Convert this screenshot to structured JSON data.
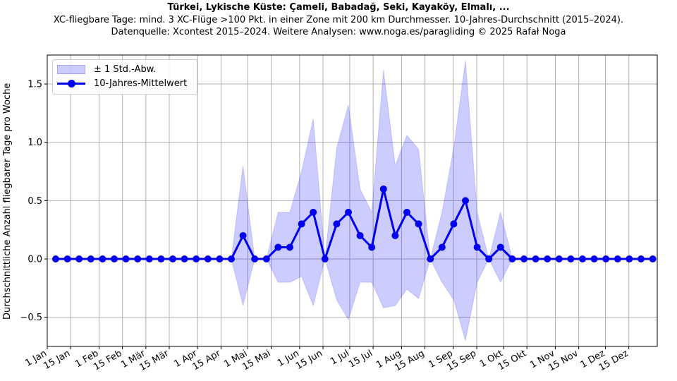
{
  "title": "Türkei, Lykische Küste: Çameli, Babadağ, Seki, Kayaköy, Elmalı, ...",
  "subtitle_line1": "XC-fliegbare Tage: mind. 3 XC-Flüge >100 Pkt. in einer Zone mit 200 km Durchmesser. 10-Jahres-Durchschnitt (2015–2024).",
  "subtitle_line2": "Datenquelle: Xcontest 2015–2024. Weitere Analysen: www.noga.es/paragliding © 2025 Rafał Noga",
  "legend": {
    "std_label": "± 1 Std.-Abw.",
    "mean_label": "10-Jahres-Mittelwert"
  },
  "colors": {
    "line": "#0000ee",
    "band": "rgba(0,0,255,0.2)",
    "grid": "#b0b0b0"
  },
  "chart_data": {
    "type": "line",
    "title": "Türkei, Lykische Küste: Çameli, Babadağ, Seki, Kayaköy, Elmalı, ...",
    "xlabel": "",
    "ylabel": "Durchschnittliche Anzahl fliegbarer Tage pro Woche",
    "ylim": [
      -0.75,
      1.75
    ],
    "yticks": [
      -0.5,
      0.0,
      0.5,
      1.0,
      1.5
    ],
    "ytick_labels": [
      "−0.5",
      "0.0",
      "0.5",
      "1.0",
      "1.5"
    ],
    "xticks": [
      "1 Jan",
      "15 Jan",
      "1 Feb",
      "15 Feb",
      "1 Mär",
      "15 Mär",
      "1 Apr",
      "15 Apr",
      "1 Mai",
      "15 Mai",
      "1 Jun",
      "15 Jun",
      "1 Jul",
      "15 Jul",
      "1 Aug",
      "15 Aug",
      "1 Sep",
      "15 Sep",
      "1 Okt",
      "15 Okt",
      "1 Nov",
      "15 Nov",
      "1 Dez",
      "15 Dez"
    ],
    "grid": true,
    "legend_position": "upper left",
    "x": [
      1,
      2,
      3,
      4,
      5,
      6,
      7,
      8,
      9,
      10,
      11,
      12,
      13,
      14,
      15,
      16,
      17,
      18,
      19,
      20,
      21,
      22,
      23,
      24,
      25,
      26,
      27,
      28,
      29,
      30,
      31,
      32,
      33,
      34,
      35,
      36,
      37,
      38,
      39,
      40,
      41,
      42,
      43,
      44,
      45,
      46,
      47,
      48,
      49,
      50,
      51,
      52
    ],
    "x_unit": "week of year",
    "series": [
      {
        "name": "10-Jahres-Mittelwert",
        "values": [
          0,
          0,
          0,
          0,
          0,
          0,
          0,
          0,
          0,
          0,
          0,
          0,
          0,
          0,
          0,
          0,
          0.2,
          0,
          0,
          0.1,
          0.1,
          0.3,
          0.4,
          0,
          0.3,
          0.4,
          0.2,
          0.1,
          0.6,
          0.2,
          0.4,
          0.3,
          0,
          0.1,
          0.3,
          0.5,
          0.1,
          0,
          0.1,
          0,
          0,
          0,
          0,
          0,
          0,
          0,
          0,
          0,
          0,
          0,
          0,
          0
        ]
      },
      {
        "name": "± 1 Std.-Abw.",
        "values": [
          0,
          0,
          0,
          0,
          0,
          0,
          0,
          0,
          0,
          0,
          0,
          0,
          0,
          0,
          0,
          0,
          0.6,
          0,
          0,
          0.3,
          0.3,
          0.45,
          0.8,
          0,
          0.65,
          0.92,
          0.4,
          0.3,
          1.02,
          0.6,
          0.66,
          0.64,
          0,
          0.3,
          0.65,
          1.2,
          0.3,
          0,
          0.3,
          0,
          0,
          0,
          0,
          0,
          0,
          0,
          0,
          0,
          0,
          0,
          0,
          0
        ]
      }
    ]
  }
}
